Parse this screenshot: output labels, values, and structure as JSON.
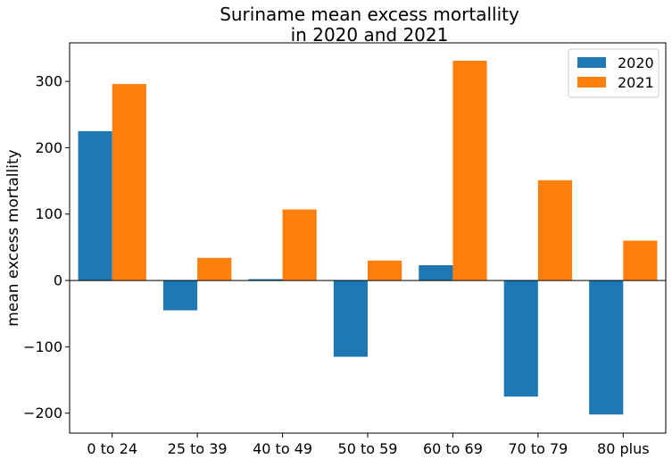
{
  "chart_data": {
    "type": "bar",
    "title_lines": [
      "Suriname mean excess mortallity",
      "in 2020 and 2021"
    ],
    "xlabel": "",
    "ylabel": "mean excess mortallity",
    "categories": [
      "0 to 24",
      "25 to 39",
      "40 to 49",
      "50 to 59",
      "60 to 69",
      "70 to 79",
      "80 plus"
    ],
    "series": [
      {
        "name": "2020",
        "color": "#1f77b4",
        "values": [
          225,
          -45,
          2,
          -115,
          23,
          -175,
          -202
        ]
      },
      {
        "name": "2021",
        "color": "#ff7f0e",
        "values": [
          296,
          34,
          107,
          30,
          331,
          151,
          60
        ]
      }
    ],
    "ylim": [
      -230,
      358
    ],
    "yticks": [
      -200,
      -100,
      0,
      100,
      200,
      300
    ],
    "grid": false,
    "legend": "top-right",
    "zero_line": true
  }
}
